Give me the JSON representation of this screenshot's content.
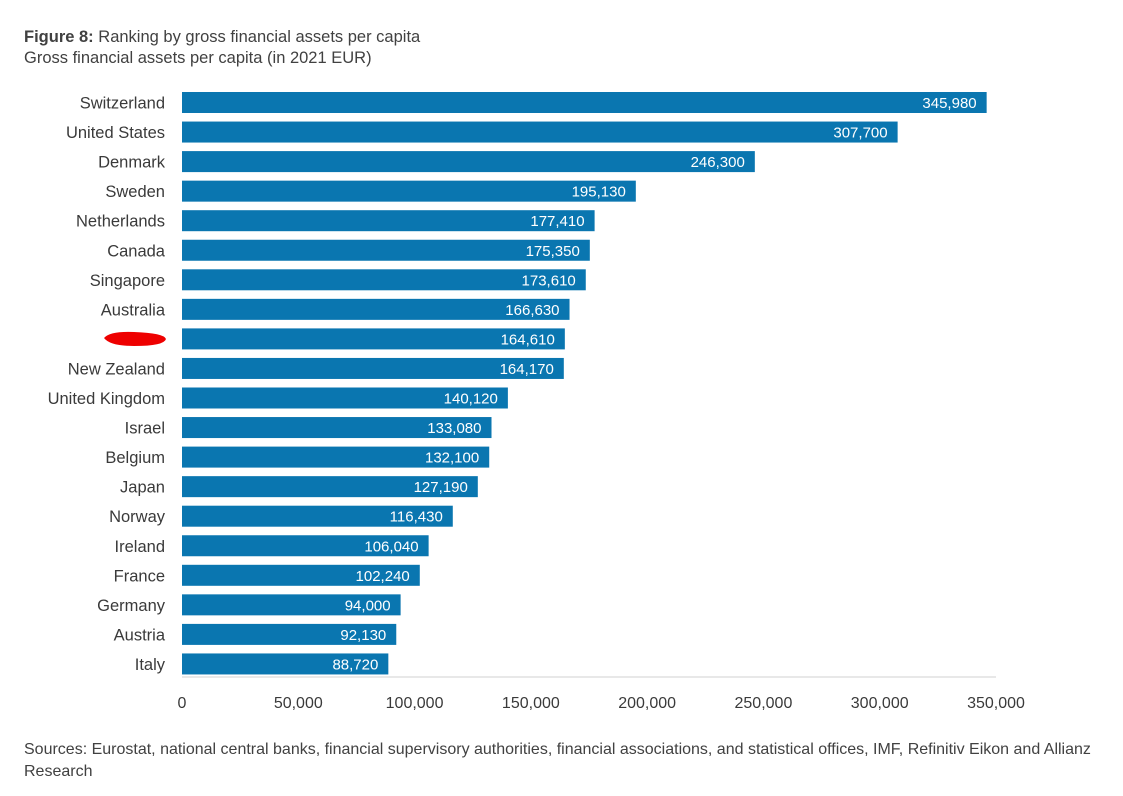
{
  "header": {
    "figure_label": "Figure 8:",
    "figure_title": "Ranking by gross financial assets per capita",
    "subtitle": "Gross financial assets per capita (in 2021 EUR)"
  },
  "footer": {
    "sources": "Sources: Eurostat, national central banks, financial supervisory authorities, financial associations, and statistical offices, IMF, Refinitiv Eikon and Allianz Research"
  },
  "colors": {
    "bar": "#0a76b0",
    "bar_label": "#ffffff",
    "axis_line": "#d0d0d0",
    "redaction": "#ee0000"
  },
  "chart_data": {
    "type": "bar",
    "orientation": "horizontal",
    "title": "Ranking by gross financial assets per capita",
    "subtitle": "Gross financial assets per capita (in 2021 EUR)",
    "xlabel": "",
    "ylabel": "",
    "xlim": [
      0,
      350000
    ],
    "xticks": [
      0,
      50000,
      100000,
      150000,
      200000,
      250000,
      300000,
      350000
    ],
    "xtick_labels": [
      "0",
      "50,000",
      "100,000",
      "150,000",
      "200,000",
      "250,000",
      "300,000",
      "350,000"
    ],
    "grid": false,
    "categories": [
      "Switzerland",
      "United States",
      "Denmark",
      "Sweden",
      "Netherlands",
      "Canada",
      "Singapore",
      "Australia",
      "",
      "New Zealand",
      "United Kingdom",
      "Israel",
      "Belgium",
      "Japan",
      "Norway",
      "Ireland",
      "France",
      "Germany",
      "Austria",
      "Italy"
    ],
    "values": [
      345980,
      307700,
      246300,
      195130,
      177410,
      175350,
      173610,
      166630,
      164610,
      164170,
      140120,
      133080,
      132100,
      127190,
      116430,
      106040,
      102240,
      94000,
      92130,
      88720
    ],
    "value_labels": [
      "345,980",
      "307,700",
      "246,300",
      "195,130",
      "177,410",
      "175,350",
      "173,610",
      "166,630",
      "164,610",
      "164,170",
      "140,120",
      "133,080",
      "132,100",
      "127,190",
      "116,430",
      "106,040",
      "102,240",
      "94,000",
      "92,130",
      "88,720"
    ],
    "redacted_category_index": 8
  }
}
